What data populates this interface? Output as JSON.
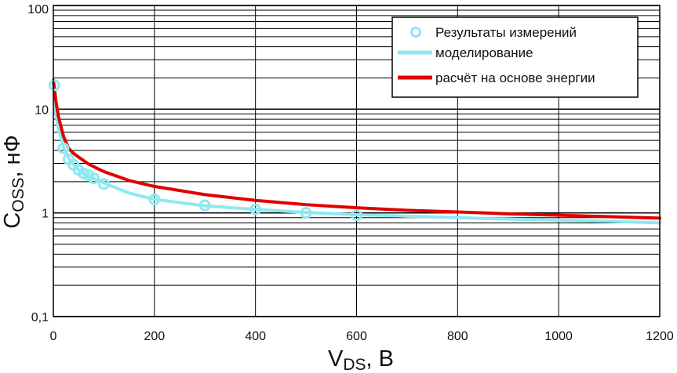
{
  "chart_data": {
    "type": "line",
    "x_axis": {
      "label_main": "V",
      "label_sub": "DS",
      "label_unit": ", В",
      "range": [
        0,
        1200
      ],
      "ticks": [
        0,
        200,
        400,
        600,
        800,
        1000,
        1200
      ],
      "tick_labels": [
        "0",
        "200",
        "400",
        "600",
        "800",
        "1000",
        "1200"
      ],
      "grid": true
    },
    "y_axis": {
      "label_main": "C",
      "label_sub": "OSS",
      "label_unit": ", нФ",
      "scale": "log",
      "range": [
        0.1,
        100
      ],
      "ticks": [
        0.1,
        1,
        10,
        100
      ],
      "tick_labels": [
        "0,1",
        "1",
        "10",
        "100"
      ],
      "grid": true,
      "minor_grid": true
    },
    "legend": {
      "position": "top-right",
      "entries": [
        {
          "label": "Результаты измерений",
          "marker": "circle",
          "color": "#8fe8f0"
        },
        {
          "label": "моделирование",
          "marker": "line",
          "color": "#8fe8f0"
        },
        {
          "label": "расчёт на основе энергии",
          "marker": "line",
          "color": "#e00000"
        }
      ]
    },
    "series": [
      {
        "name": "Результаты измерений",
        "style": "markers",
        "color": "#8fe8f0",
        "x": [
          2,
          20,
          30,
          40,
          50,
          60,
          70,
          80,
          100,
          200,
          300,
          400,
          500,
          600
        ],
        "y": [
          17,
          4.2,
          3.3,
          2.9,
          2.6,
          2.4,
          2.3,
          2.15,
          1.9,
          1.35,
          1.18,
          1.08,
          1.0,
          0.95
        ]
      },
      {
        "name": "моделирование",
        "style": "line",
        "color": "#8fe8f0",
        "x": [
          0,
          2,
          5,
          10,
          20,
          30,
          40,
          50,
          70,
          100,
          150,
          200,
          300,
          400,
          500,
          600,
          700,
          800,
          900,
          1000,
          1100,
          1200
        ],
        "y": [
          18,
          14,
          9,
          6.5,
          4.3,
          3.4,
          2.9,
          2.6,
          2.25,
          1.95,
          1.55,
          1.35,
          1.17,
          1.08,
          1.01,
          0.96,
          0.93,
          0.9,
          0.87,
          0.85,
          0.83,
          0.8
        ]
      },
      {
        "name": "расчёт на основе энергии",
        "style": "line",
        "color": "#e00000",
        "x": [
          0,
          2,
          5,
          10,
          20,
          30,
          40,
          50,
          70,
          100,
          150,
          200,
          300,
          400,
          500,
          600,
          700,
          800,
          900,
          1000,
          1100,
          1200
        ],
        "y": [
          19,
          16,
          12,
          8.5,
          5.5,
          4.2,
          3.75,
          3.45,
          2.95,
          2.5,
          2.05,
          1.8,
          1.5,
          1.32,
          1.2,
          1.12,
          1.06,
          1.02,
          0.98,
          0.95,
          0.92,
          0.89
        ]
      }
    ]
  }
}
